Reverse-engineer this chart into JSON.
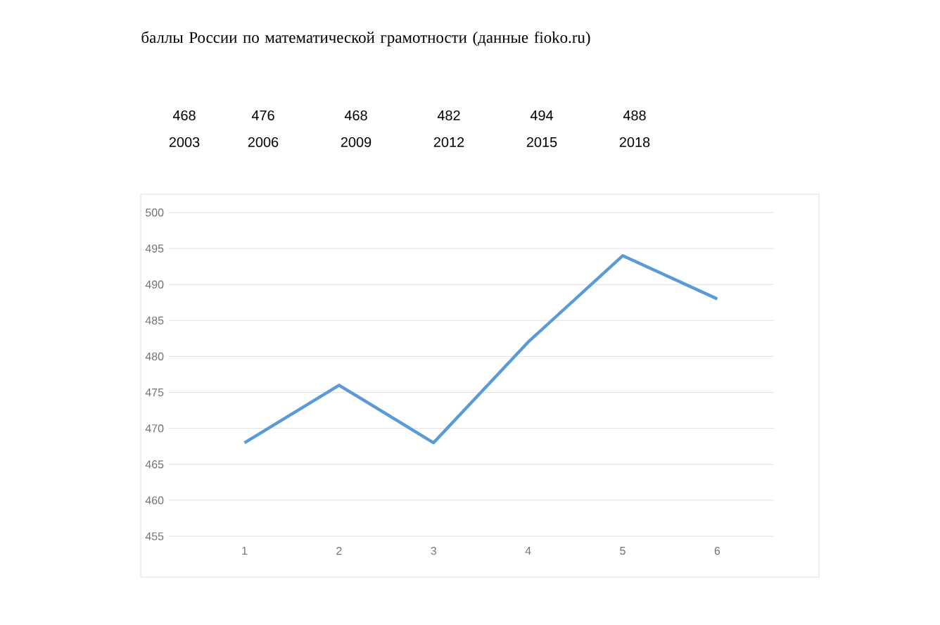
{
  "chart_data": {
    "type": "line",
    "title": "баллы России по математической грамотности (данные fioko.ru)",
    "categories": [
      "1",
      "2",
      "3",
      "4",
      "5",
      "6"
    ],
    "values": [
      468,
      476,
      468,
      482,
      494,
      488
    ],
    "color": "#5b9bd5",
    "ylim": [
      455,
      500
    ],
    "yticks": [
      455,
      460,
      465,
      470,
      475,
      480,
      485,
      490,
      495,
      500
    ],
    "grid": "y",
    "annotations": [
      "468",
      "476",
      "468",
      "482",
      "494",
      "488",
      "2003",
      "2006",
      "2009",
      "2012",
      "2015",
      "2018"
    ]
  }
}
